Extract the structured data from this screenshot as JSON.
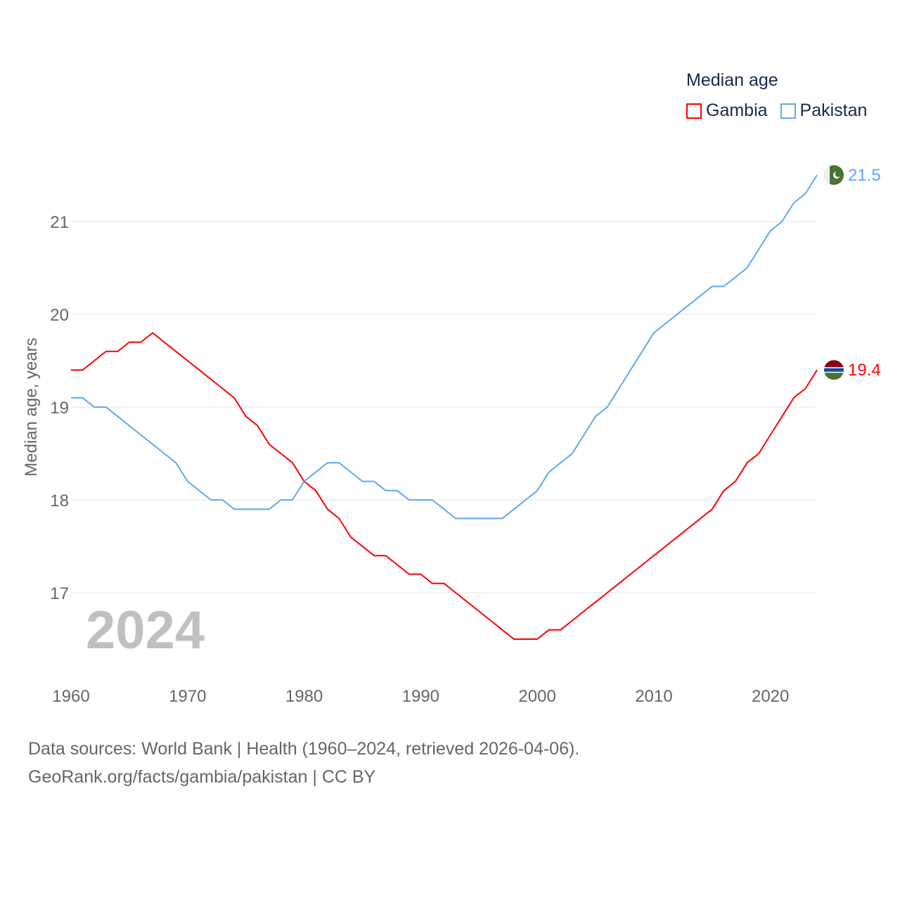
{
  "chart_data": {
    "type": "line",
    "title": "Median age",
    "ylabel": "Median age, years",
    "xlabel": "",
    "ylim": [
      16.2,
      21.8
    ],
    "xlim": [
      1960,
      2024
    ],
    "yticks": [
      "17",
      "18",
      "19",
      "20",
      "21"
    ],
    "xticks": [
      "1960",
      "1970",
      "1980",
      "1990",
      "2000",
      "2010",
      "2020"
    ],
    "year_label": "2024",
    "grid": true,
    "legend_placement": "top-right",
    "x": [
      1960,
      1961,
      1962,
      1963,
      1964,
      1965,
      1966,
      1967,
      1968,
      1969,
      1970,
      1971,
      1972,
      1973,
      1974,
      1975,
      1976,
      1977,
      1978,
      1979,
      1980,
      1981,
      1982,
      1983,
      1984,
      1985,
      1986,
      1987,
      1988,
      1989,
      1990,
      1991,
      1992,
      1993,
      1994,
      1995,
      1996,
      1997,
      1998,
      1999,
      2000,
      2001,
      2002,
      2003,
      2004,
      2005,
      2006,
      2007,
      2008,
      2009,
      2010,
      2011,
      2012,
      2013,
      2014,
      2015,
      2016,
      2017,
      2018,
      2019,
      2020,
      2021,
      2022,
      2023,
      2024
    ],
    "series": [
      {
        "name": "Gambia",
        "color": "#ff0000",
        "end_label": "19.4",
        "values": [
          19.4,
          19.4,
          19.5,
          19.6,
          19.6,
          19.7,
          19.7,
          19.8,
          19.7,
          19.6,
          19.5,
          19.4,
          19.3,
          19.2,
          19.1,
          18.9,
          18.8,
          18.6,
          18.5,
          18.4,
          18.2,
          18.1,
          17.9,
          17.8,
          17.6,
          17.5,
          17.4,
          17.4,
          17.3,
          17.2,
          17.2,
          17.1,
          17.1,
          17.0,
          16.9,
          16.8,
          16.7,
          16.6,
          16.5,
          16.5,
          16.5,
          16.6,
          16.6,
          16.7,
          16.8,
          16.9,
          17.0,
          17.1,
          17.2,
          17.3,
          17.4,
          17.5,
          17.6,
          17.7,
          17.8,
          17.9,
          18.1,
          18.2,
          18.4,
          18.5,
          18.7,
          18.9,
          19.1,
          19.2,
          19.4
        ]
      },
      {
        "name": "Pakistan",
        "color": "#5ea8ee",
        "end_label": "21.5",
        "values": [
          19.1,
          19.1,
          19.0,
          19.0,
          18.9,
          18.8,
          18.7,
          18.6,
          18.5,
          18.4,
          18.2,
          18.1,
          18.0,
          18.0,
          17.9,
          17.9,
          17.9,
          17.9,
          18.0,
          18.0,
          18.2,
          18.3,
          18.4,
          18.4,
          18.3,
          18.2,
          18.2,
          18.1,
          18.1,
          18.0,
          18.0,
          18.0,
          17.9,
          17.8,
          17.8,
          17.8,
          17.8,
          17.8,
          17.9,
          18.0,
          18.1,
          18.3,
          18.4,
          18.5,
          18.7,
          18.9,
          19.0,
          19.2,
          19.4,
          19.6,
          19.8,
          19.9,
          20.0,
          20.1,
          20.2,
          20.3,
          20.3,
          20.4,
          20.5,
          20.7,
          20.9,
          21.0,
          21.2,
          21.3,
          21.5
        ]
      }
    ]
  },
  "source": {
    "line1": "Data sources: World Bank | Health (1960–2024, retrieved 2026-04-06).",
    "line2": "GeoRank.org/facts/gambia/pakistan | CC BY"
  }
}
